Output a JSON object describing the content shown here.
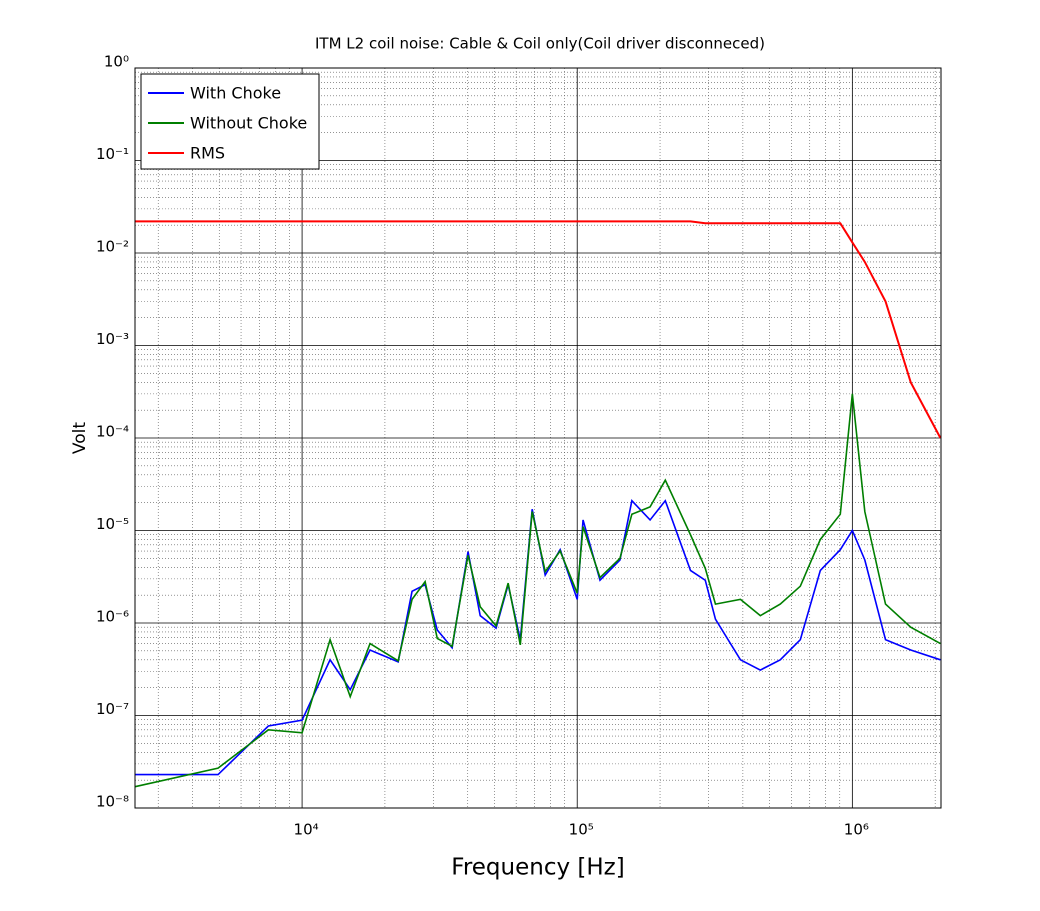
{
  "chart_data": {
    "type": "line",
    "title": "ITM L2 coil noise: Cable & Coil only(Coil driver disconneced)",
    "x_label": "Frequency [Hz]",
    "y_label": "Volt",
    "log_x": true,
    "log_y": true,
    "grid": true,
    "minor_grid": true,
    "legend": "upper left",
    "xlim": [
      2470,
      2100000
    ],
    "ylim": [
      1e-08,
      1
    ],
    "xticks": [
      {
        "value": 10000,
        "label": "10⁴"
      },
      {
        "value": 100000,
        "label": "10⁵"
      },
      {
        "value": 1000000,
        "label": "10⁶"
      }
    ],
    "yticks": [
      {
        "value": 1e-08,
        "label": "10⁻⁸"
      },
      {
        "value": 1e-07,
        "label": "10⁻⁷"
      },
      {
        "value": 1e-06,
        "label": "10⁻⁶"
      },
      {
        "value": 1e-05,
        "label": "10⁻⁵"
      },
      {
        "value": 0.0001,
        "label": "10⁻⁴"
      },
      {
        "value": 0.001,
        "label": "10⁻³"
      },
      {
        "value": 0.01,
        "label": "10⁻²"
      },
      {
        "value": 0.1,
        "label": "10⁻¹"
      },
      {
        "value": 1,
        "label": "10⁰"
      }
    ],
    "x": [
      2470,
      4950,
      7540,
      10000,
      12640,
      14960,
      17660,
      22350,
      25100,
      28000,
      31000,
      35100,
      40100,
      44400,
      50700,
      56100,
      62100,
      68600,
      76500,
      86700,
      100000,
      105000,
      121000,
      143000,
      158000,
      184000,
      209000,
      258000,
      292000,
      318000,
      392000,
      463000,
      547000,
      647000,
      765000,
      904000,
      1000000,
      1110000,
      1320000,
      1630000,
      2090000
    ],
    "series": [
      {
        "name": "With Choke",
        "color": "#0000ff",
        "values": [
          2.3e-08,
          2.3e-08,
          7.7e-08,
          8.9e-08,
          4e-07,
          1.9e-07,
          5.1e-07,
          3.8e-07,
          2.2e-06,
          2.6e-06,
          8.4e-07,
          5.4e-07,
          5.9e-06,
          1.2e-06,
          8.8e-07,
          2.6e-06,
          6.6e-07,
          1.7e-05,
          3.3e-06,
          6.2e-06,
          1.8e-06,
          1.3e-05,
          2.9e-06,
          4.8e-06,
          2.1e-05,
          1.3e-05,
          2.1e-05,
          3.7e-06,
          2.9e-06,
          1.1e-06,
          4e-07,
          3.1e-07,
          4e-07,
          6.6e-07,
          3.7e-06,
          6.2e-06,
          1e-05,
          4.8e-06,
          6.6e-07,
          5.1e-07,
          4e-07
        ]
      },
      {
        "name": "Without Choke",
        "color": "#007f00",
        "values": [
          1.7e-08,
          2.7e-08,
          7e-08,
          6.5e-08,
          6.6e-07,
          1.6e-07,
          6e-07,
          3.9e-07,
          1.8e-06,
          2.8e-06,
          6.8e-07,
          5.6e-07,
          5.4e-06,
          1.5e-06,
          9.3e-07,
          2.7e-06,
          5.8e-07,
          1.6e-05,
          3.6e-06,
          6e-06,
          2.1e-06,
          1.1e-05,
          3.1e-06,
          5e-06,
          1.5e-05,
          1.8e-05,
          3.5e-05,
          9e-06,
          3.9e-06,
          1.6e-06,
          1.8e-06,
          1.2e-06,
          1.6e-06,
          2.5e-06,
          8e-06,
          1.5e-05,
          0.0003,
          1.6e-05,
          1.6e-06,
          9e-07,
          6e-07
        ]
      },
      {
        "name": "RMS",
        "color": "#ff0000",
        "values": [
          0.022,
          0.022,
          0.022,
          0.022,
          0.022,
          0.022,
          0.022,
          0.022,
          0.022,
          0.022,
          0.022,
          0.022,
          0.022,
          0.022,
          0.022,
          0.022,
          0.022,
          0.022,
          0.022,
          0.022,
          0.022,
          0.022,
          0.022,
          0.022,
          0.022,
          0.022,
          0.022,
          0.022,
          0.021,
          0.021,
          0.021,
          0.021,
          0.021,
          0.021,
          0.021,
          0.021,
          0.013,
          0.008,
          0.003,
          0.0004,
          0.0001
        ]
      }
    ]
  }
}
